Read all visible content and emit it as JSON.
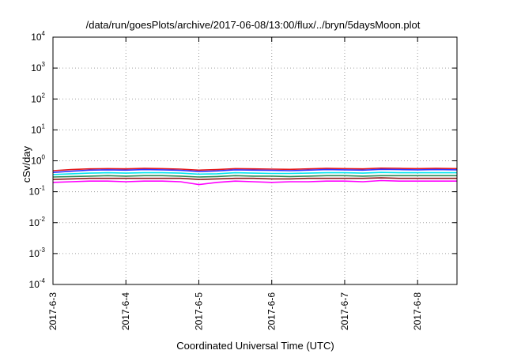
{
  "chart_data": {
    "type": "line",
    "title": "/data/run/goesPlots/archive/2017-06-08/13:00/flux/../bryn/5daysMoon.plot",
    "xlabel": "Coordinated Universal Time (UTC)",
    "ylabel": "cSv/day",
    "yscale": "log",
    "ylim": [
      0.0001,
      10000
    ],
    "xlim": [
      "2017-06-03 00:00",
      "2017-06-08 13:00"
    ],
    "grid": true,
    "y_ticks": [
      {
        "base": "10",
        "exp": "-4",
        "value": 0.0001
      },
      {
        "base": "10",
        "exp": "-3",
        "value": 0.001
      },
      {
        "base": "10",
        "exp": "-2",
        "value": 0.01
      },
      {
        "base": "10",
        "exp": "-1",
        "value": 0.1
      },
      {
        "base": "10",
        "exp": "0",
        "value": 1
      },
      {
        "base": "10",
        "exp": "1",
        "value": 10
      },
      {
        "base": "10",
        "exp": "2",
        "value": 100
      },
      {
        "base": "10",
        "exp": "3",
        "value": 1000
      },
      {
        "base": "10",
        "exp": "4",
        "value": 10000
      }
    ],
    "x_ticks": [
      {
        "label": "2017-6-3",
        "day": 0
      },
      {
        "label": "2017-6-4",
        "day": 1
      },
      {
        "label": "2017-6-5",
        "day": 2
      },
      {
        "label": "2017-6-6",
        "day": 3
      },
      {
        "label": "2017-6-7",
        "day": 4
      },
      {
        "label": "2017-6-8",
        "day": 5
      }
    ],
    "x": [
      0.0,
      0.25,
      0.5,
      0.75,
      1.0,
      1.25,
      1.5,
      1.75,
      2.0,
      2.25,
      2.5,
      2.75,
      3.0,
      3.25,
      3.5,
      3.75,
      4.0,
      4.25,
      4.5,
      4.75,
      5.0,
      5.25,
      5.54
    ],
    "series": [
      {
        "color": "#e41a1c",
        "values": [
          0.48,
          0.52,
          0.55,
          0.56,
          0.55,
          0.57,
          0.56,
          0.54,
          0.5,
          0.52,
          0.56,
          0.55,
          0.54,
          0.53,
          0.55,
          0.57,
          0.56,
          0.55,
          0.58,
          0.57,
          0.56,
          0.57,
          0.56
        ]
      },
      {
        "color": "#3333ff",
        "values": [
          0.42,
          0.46,
          0.5,
          0.51,
          0.5,
          0.52,
          0.51,
          0.49,
          0.45,
          0.47,
          0.51,
          0.5,
          0.49,
          0.48,
          0.5,
          0.52,
          0.51,
          0.5,
          0.53,
          0.52,
          0.51,
          0.52,
          0.51
        ]
      },
      {
        "color": "#00e5ee",
        "values": [
          0.36,
          0.38,
          0.4,
          0.41,
          0.4,
          0.41,
          0.41,
          0.4,
          0.37,
          0.38,
          0.41,
          0.4,
          0.39,
          0.39,
          0.4,
          0.41,
          0.41,
          0.4,
          0.42,
          0.41,
          0.41,
          0.41,
          0.41
        ]
      },
      {
        "color": "#2e8b57",
        "values": [
          0.3,
          0.31,
          0.32,
          0.33,
          0.32,
          0.33,
          0.33,
          0.32,
          0.3,
          0.31,
          0.33,
          0.32,
          0.32,
          0.31,
          0.32,
          0.33,
          0.33,
          0.32,
          0.33,
          0.33,
          0.33,
          0.33,
          0.33
        ]
      },
      {
        "color": "#8b1a1a",
        "values": [
          0.25,
          0.26,
          0.27,
          0.27,
          0.27,
          0.27,
          0.27,
          0.27,
          0.25,
          0.26,
          0.27,
          0.27,
          0.26,
          0.26,
          0.27,
          0.27,
          0.27,
          0.27,
          0.28,
          0.27,
          0.27,
          0.27,
          0.27
        ]
      },
      {
        "color": "#ff00ff",
        "values": [
          0.2,
          0.21,
          0.22,
          0.22,
          0.21,
          0.22,
          0.22,
          0.21,
          0.17,
          0.2,
          0.22,
          0.21,
          0.2,
          0.21,
          0.21,
          0.22,
          0.22,
          0.21,
          0.23,
          0.22,
          0.22,
          0.22,
          0.22
        ]
      }
    ]
  }
}
